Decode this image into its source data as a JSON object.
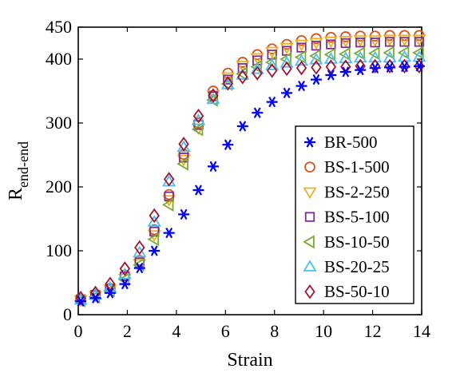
{
  "chart_data": {
    "type": "scatter",
    "title": "",
    "xlabel": "Strain",
    "ylabel": "R",
    "ylabel_subscript": "end-end",
    "xlim": [
      0,
      14
    ],
    "ylim": [
      0,
      450
    ],
    "xticks": [
      "0",
      "2",
      "4",
      "6",
      "8",
      "10",
      "12",
      "14"
    ],
    "yticks": [
      "0",
      "100",
      "200",
      "300",
      "400",
      "450"
    ],
    "grid": false,
    "legend": "right",
    "series": [
      {
        "name": "BR-500",
        "marker": "asterisk",
        "color": "#0000ff",
        "x": [
          0.1,
          0.7,
          1.3,
          1.9,
          2.5,
          3.1,
          3.7,
          4.3,
          4.9,
          5.5,
          6.1,
          6.7,
          7.3,
          7.9,
          8.5,
          9.1,
          9.7,
          10.3,
          10.9,
          11.5,
          12.1,
          12.7,
          13.3,
          13.9
        ],
        "y": [
          21,
          26,
          34,
          48,
          73,
          100,
          128,
          157,
          195,
          232,
          266,
          295,
          316,
          333,
          347,
          358,
          368,
          375,
          380,
          383,
          386,
          387,
          388,
          389
        ]
      },
      {
        "name": "BS-1-500",
        "marker": "circle",
        "color": "#d95319",
        "x": [
          0.1,
          0.7,
          1.3,
          1.9,
          2.5,
          3.1,
          3.7,
          4.3,
          4.9,
          5.5,
          6.1,
          6.7,
          7.3,
          7.9,
          8.5,
          9.1,
          9.7,
          10.3,
          10.9,
          11.5,
          12.1,
          12.7,
          13.3,
          13.9
        ],
        "y": [
          24,
          31,
          41,
          62,
          85,
          133,
          188,
          251,
          300,
          350,
          378,
          395,
          407,
          416,
          423,
          429,
          432,
          434,
          435,
          436,
          436,
          437,
          437,
          437
        ]
      },
      {
        "name": "BS-2-250",
        "marker": "triangle-down",
        "color": "#edb120",
        "x": [
          0.1,
          0.7,
          1.3,
          1.9,
          2.5,
          3.1,
          3.7,
          4.3,
          4.9,
          5.5,
          6.1,
          6.7,
          7.3,
          7.9,
          8.5,
          9.1,
          9.7,
          10.3,
          10.9,
          11.5,
          12.1,
          12.7,
          13.3,
          13.9
        ],
        "y": [
          23,
          30,
          40,
          57,
          80,
          125,
          180,
          243,
          292,
          344,
          372,
          390,
          402,
          412,
          418,
          423,
          426,
          428,
          429,
          430,
          430,
          431,
          431,
          431
        ]
      },
      {
        "name": "BS-5-100",
        "marker": "square",
        "color": "#7e2f8e",
        "x": [
          0.1,
          0.7,
          1.3,
          1.9,
          2.5,
          3.1,
          3.7,
          4.3,
          4.9,
          5.5,
          6.1,
          6.7,
          7.3,
          7.9,
          8.5,
          9.1,
          9.7,
          10.3,
          10.9,
          11.5,
          12.1,
          12.7,
          13.3,
          13.9
        ],
        "y": [
          24,
          31,
          41,
          60,
          82,
          130,
          185,
          246,
          297,
          342,
          368,
          386,
          398,
          407,
          413,
          418,
          421,
          423,
          425,
          426,
          426,
          427,
          427,
          427
        ]
      },
      {
        "name": "BS-10-50",
        "marker": "triangle-left",
        "color": "#77ac30",
        "x": [
          0.1,
          0.7,
          1.3,
          1.9,
          2.5,
          3.1,
          3.7,
          4.3,
          4.9,
          5.5,
          6.1,
          6.7,
          7.3,
          7.9,
          8.5,
          9.1,
          9.7,
          10.3,
          10.9,
          11.5,
          12.1,
          12.7,
          13.3,
          13.9
        ],
        "y": [
          22,
          28,
          38,
          55,
          78,
          118,
          172,
          236,
          290,
          336,
          361,
          377,
          388,
          395,
          400,
          403,
          405,
          407,
          408,
          409,
          409,
          410,
          410,
          410
        ]
      },
      {
        "name": "BS-20-25",
        "marker": "triangle-up",
        "color": "#4dbeee",
        "x": [
          0.1,
          0.7,
          1.3,
          1.9,
          2.5,
          3.1,
          3.7,
          4.3,
          4.9,
          5.5,
          6.1,
          6.7,
          7.3,
          7.9,
          8.5,
          9.1,
          9.7,
          10.3,
          10.9,
          11.5,
          12.1,
          12.7,
          13.3,
          13.9
        ],
        "y": [
          23,
          31,
          42,
          63,
          97,
          145,
          208,
          262,
          304,
          337,
          360,
          375,
          384,
          390,
          394,
          397,
          399,
          400,
          401,
          402,
          402,
          402,
          403,
          403
        ]
      },
      {
        "name": "BS-50-10",
        "marker": "diamond",
        "color": "#a2142f",
        "x": [
          0.1,
          0.7,
          1.3,
          1.9,
          2.5,
          3.1,
          3.7,
          4.3,
          4.9,
          5.5,
          6.1,
          6.7,
          7.3,
          7.9,
          8.5,
          9.1,
          9.7,
          10.3,
          10.9,
          11.5,
          12.1,
          12.7,
          13.3,
          13.9
        ],
        "y": [
          26,
          34,
          48,
          72,
          105,
          155,
          212,
          267,
          311,
          343,
          362,
          372,
          378,
          382,
          385,
          386,
          387,
          388,
          388,
          389,
          389,
          389,
          389,
          389
        ]
      }
    ]
  }
}
